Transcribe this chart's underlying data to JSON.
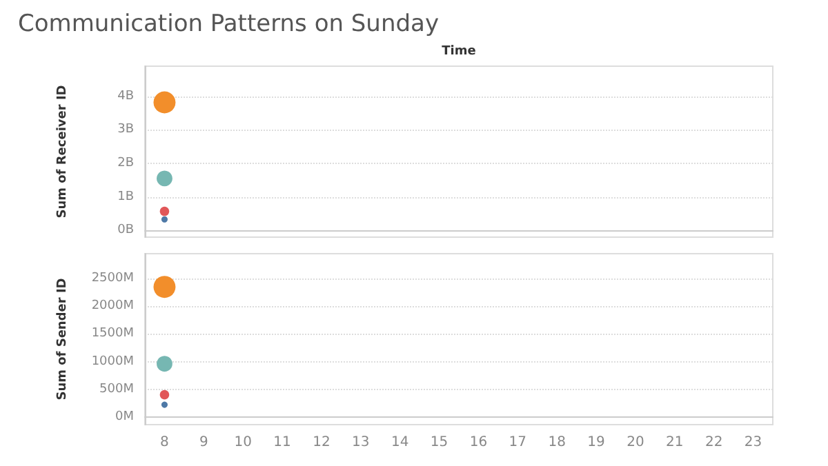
{
  "chart_data": [
    {
      "type": "bubble",
      "title": "Communication Patterns on Sunday",
      "xlabel": "Time",
      "ylabel": "Sum of Receiver ID",
      "categories": [
        "8",
        "9",
        "10",
        "11",
        "12",
        "13",
        "14",
        "15",
        "16",
        "17",
        "18",
        "19",
        "20",
        "21",
        "22",
        "23"
      ],
      "ylim": [
        -0.2,
        4.9
      ],
      "yticks": [
        {
          "value": 0,
          "label": "0B"
        },
        {
          "value": 1,
          "label": "1B"
        },
        {
          "value": 2,
          "label": "2B"
        },
        {
          "value": 3,
          "label": "3B"
        },
        {
          "value": 4,
          "label": "4B"
        }
      ],
      "grid": "y",
      "tick_labels": "y",
      "series": [
        {
          "color": "#f28e2b",
          "x": [
            "8"
          ],
          "values": [
            3.82
          ],
          "sizes": [
            1
          ]
        },
        {
          "color": "#76b7b2",
          "x": [
            "8"
          ],
          "values": [
            1.55
          ],
          "sizes": [
            0.51
          ]
        },
        {
          "color": "#e15759",
          "x": [
            "8"
          ],
          "values": [
            0.57
          ],
          "sizes": [
            0.18
          ]
        },
        {
          "color": "#4e79a7",
          "x": [
            "8"
          ],
          "values": [
            0.33
          ],
          "sizes": [
            0.08
          ]
        }
      ]
    },
    {
      "type": "bubble",
      "ylabel": "Sum of Sender ID",
      "categories": [
        "8",
        "9",
        "10",
        "11",
        "12",
        "13",
        "14",
        "15",
        "16",
        "17",
        "18",
        "19",
        "20",
        "21",
        "22",
        "23"
      ],
      "ylim": [
        -140,
        2950
      ],
      "yticks": [
        {
          "value": 0,
          "label": "0M"
        },
        {
          "value": 500,
          "label": "500M"
        },
        {
          "value": 1000,
          "label": "1000M"
        },
        {
          "value": 1500,
          "label": "1500M"
        },
        {
          "value": 2000,
          "label": "2000M"
        },
        {
          "value": 2500,
          "label": "2500M"
        }
      ],
      "grid": "y",
      "series": [
        {
          "color": "#f28e2b",
          "x": [
            "8"
          ],
          "values": [
            2350
          ],
          "sizes": [
            1
          ]
        },
        {
          "color": "#76b7b2",
          "x": [
            "8"
          ],
          "values": [
            960
          ],
          "sizes": [
            0.51
          ]
        },
        {
          "color": "#e15759",
          "x": [
            "8"
          ],
          "values": [
            400
          ],
          "sizes": [
            0.18
          ]
        },
        {
          "color": "#4e79a7",
          "x": [
            "8"
          ],
          "values": [
            220
          ],
          "sizes": [
            0.08
          ]
        }
      ]
    }
  ]
}
